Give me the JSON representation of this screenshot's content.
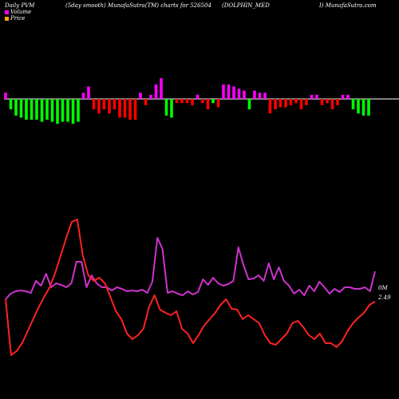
{
  "header": {
    "left": "Daily PVM",
    "center1": "(5day smooth) MunafaSutra(TM) charts for 526504",
    "center2": "(DOLPHIN_MED",
    "right": "I) MunafaSutra.com"
  },
  "legend": [
    {
      "label": "Volume",
      "color": "#ff00ff"
    },
    {
      "label": "Price",
      "color": "#ffa500"
    }
  ],
  "colors": {
    "background": "#000000",
    "up": "#ff00ff",
    "up_series": "#cc33cc",
    "down": "#ff0000",
    "down_strong": "#00ff00",
    "baseline": "#ffffff",
    "volume_line": "#cc33cc",
    "price_line": "#ff2222"
  },
  "chart_data": {
    "type": "bar+line",
    "bars": {
      "baseline": 0,
      "values": [
        3,
        -5,
        -8,
        -9,
        -10,
        -10,
        -10,
        -11,
        -10,
        -11,
        -12,
        -11,
        -11,
        -12,
        -11,
        3,
        6,
        -5,
        -7,
        -5,
        -7,
        -5,
        -9,
        -9,
        -10,
        -10,
        3,
        -3,
        2,
        7,
        10,
        -8,
        -9,
        -2,
        -2,
        -2,
        -3,
        2,
        -2,
        -5,
        -2,
        -4,
        7,
        7,
        6,
        5,
        4,
        -5,
        4,
        3,
        3,
        -7,
        -5,
        -4,
        -4,
        -3,
        -2,
        -5,
        -3,
        2,
        2,
        -3,
        -2,
        -5,
        -3,
        2,
        2,
        -5,
        -7,
        -8,
        -8
      ],
      "colors": [
        "up",
        "down_strong",
        "down_strong",
        "down_strong",
        "down_strong",
        "down_strong",
        "down_strong",
        "down_strong",
        "down_strong",
        "down_strong",
        "down_strong",
        "down_strong",
        "down_strong",
        "down_strong",
        "down_strong",
        "up",
        "up",
        "down",
        "down",
        "down",
        "down",
        "down",
        "down",
        "down",
        "down",
        "down",
        "up",
        "down",
        "up",
        "up",
        "up",
        "down_strong",
        "down_strong",
        "down",
        "down",
        "down",
        "down",
        "up",
        "down",
        "down",
        "down_strong",
        "down",
        "up",
        "up",
        "up",
        "up",
        "up",
        "down_strong",
        "up",
        "up",
        "up",
        "down",
        "down",
        "down",
        "down",
        "down",
        "down",
        "down",
        "down",
        "up",
        "up",
        "down",
        "down",
        "down",
        "down",
        "up",
        "up",
        "down_strong",
        "down_strong",
        "down_strong",
        "down_strong"
      ]
    },
    "volume_line": [
      375,
      368,
      365,
      364,
      365,
      367,
      352,
      358,
      343,
      360,
      355,
      357,
      360,
      355,
      328,
      328,
      360,
      345,
      355,
      360,
      360,
      364,
      360,
      362,
      365,
      364,
      365,
      363,
      367,
      353,
      298,
      312,
      367,
      365,
      368,
      370,
      365,
      369,
      366,
      350,
      357,
      348,
      355,
      358,
      356,
      352,
      310,
      332,
      350,
      349,
      345,
      352,
      330,
      350,
      335,
      352,
      358,
      368,
      363,
      370,
      358,
      365,
      353,
      360,
      368,
      362,
      366,
      360,
      360,
      362,
      362,
      360,
      365,
      340
    ],
    "price_line": [
      375,
      445,
      440,
      430,
      415,
      400,
      385,
      372,
      360,
      342,
      320,
      298,
      278,
      275,
      320,
      345,
      352,
      348,
      355,
      372,
      390,
      400,
      418,
      425,
      420,
      412,
      385,
      370,
      388,
      392,
      395,
      390,
      412,
      418,
      430,
      420,
      408,
      400,
      392,
      382,
      375,
      387,
      388,
      400,
      395,
      400,
      405,
      420,
      430,
      432,
      425,
      418,
      405,
      402,
      410,
      420,
      425,
      418,
      430,
      430,
      435,
      428,
      415,
      405,
      398,
      392,
      382,
      378
    ],
    "labels": {
      "right_top": "0M",
      "right_bottom": "2.49"
    },
    "grid": false
  }
}
